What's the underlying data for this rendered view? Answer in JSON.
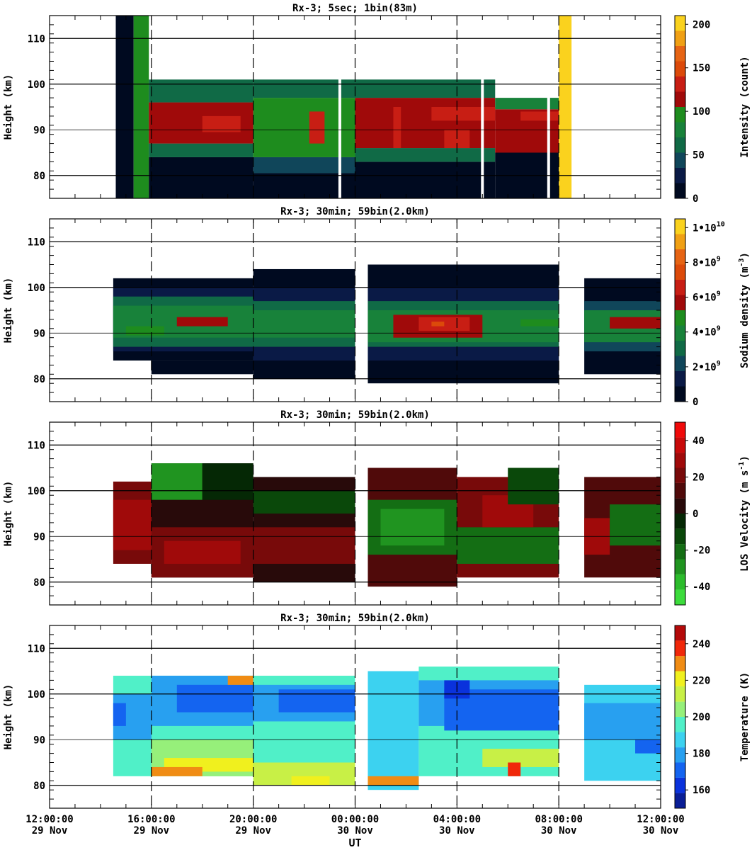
{
  "chart_data": [
    {
      "type": "heatmap",
      "title": "Rx-3;  5sec; 1bin(83m)",
      "ylabel": "Height (km)",
      "ylim": [
        75,
        115
      ],
      "yticks": [
        80,
        90,
        100,
        110
      ],
      "x_range_hours_since_12UT_29Nov": [
        0,
        24
      ],
      "cells": [
        [
          2.6,
          3.3,
          75.0,
          115.0,
          0
        ],
        [
          3.3,
          3.9,
          75.0,
          115.0,
          90
        ],
        [
          3.9,
          8.0,
          75.0,
          84.0,
          0
        ],
        [
          3.9,
          8.0,
          84.0,
          87.0,
          60
        ],
        [
          3.9,
          8.0,
          87.0,
          96.0,
          110
        ],
        [
          3.9,
          8.0,
          96.0,
          101.0,
          70
        ],
        [
          8.0,
          12.0,
          75.0,
          80.5,
          0
        ],
        [
          8.0,
          12.0,
          80.5,
          84.0,
          50
        ],
        [
          8.0,
          12.0,
          84.0,
          97.0,
          105
        ],
        [
          8.0,
          12.0,
          97.0,
          101.0,
          65
        ],
        [
          12.0,
          17.5,
          75.0,
          83.0,
          0
        ],
        [
          12.0,
          17.5,
          83.0,
          86.0,
          55
        ],
        [
          12.0,
          17.5,
          86.0,
          97.0,
          110
        ],
        [
          12.0,
          17.5,
          97.0,
          101.0,
          60
        ],
        [
          17.5,
          20.0,
          75.0,
          85.0,
          0
        ],
        [
          17.5,
          20.0,
          85.0,
          94.5,
          120
        ],
        [
          17.5,
          20.0,
          94.5,
          97.0,
          80
        ],
        [
          20.0,
          20.5,
          75.0,
          115.0,
          200
        ],
        [
          6.0,
          7.5,
          89.5,
          93.0,
          130
        ],
        [
          10.2,
          10.8,
          87.0,
          94.0,
          125
        ],
        [
          13.5,
          13.8,
          86.0,
          95.0,
          135
        ],
        [
          15.0,
          17.5,
          92.0,
          95.0,
          130
        ],
        [
          15.5,
          16.5,
          86.0,
          90.0,
          125
        ],
        [
          18.5,
          20.0,
          92.0,
          94.0,
          140
        ]
      ],
      "gaps_hours": [
        11.4,
        17.0,
        19.6
      ],
      "colorbar": {
        "label": "Intensity (count)",
        "min": 0,
        "max": 210,
        "tick_values": [
          0,
          50,
          100,
          150,
          200
        ],
        "tick_labels": [
          "0",
          "50",
          "100",
          "150",
          "200"
        ],
        "bands": [
          [
            0,
            17.5,
            "#000a20"
          ],
          [
            17.5,
            35,
            "#0a1a46"
          ],
          [
            35,
            52.5,
            "#10465a"
          ],
          [
            52.5,
            70,
            "#106a46"
          ],
          [
            70,
            87.5,
            "#18823a"
          ],
          [
            87.5,
            105,
            "#1e8c1e"
          ],
          [
            105,
            122.5,
            "#a00a0a"
          ],
          [
            122.5,
            140,
            "#c81e14"
          ],
          [
            140,
            157.5,
            "#dc4a0a"
          ],
          [
            157.5,
            175,
            "#e66414"
          ],
          [
            175,
            192.5,
            "#f0a014"
          ],
          [
            192.5,
            210,
            "#fad21e"
          ]
        ]
      }
    },
    {
      "type": "heatmap",
      "title": "Rx-3; 30min; 59bin(2.0km)",
      "ylabel": "Height (km)",
      "ylim": [
        75,
        115
      ],
      "yticks": [
        80,
        90,
        100,
        110
      ],
      "x_range_hours_since_12UT_29Nov": [
        0,
        24
      ],
      "cells": [
        [
          2.5,
          8.0,
          84.0,
          102.0,
          0.3
        ],
        [
          2.5,
          8.0,
          86.0,
          100.0,
          1.0
        ],
        [
          2.5,
          8.0,
          87.0,
          98.0,
          3.2
        ],
        [
          2.5,
          8.0,
          89.0,
          96.0,
          4.1
        ],
        [
          3.0,
          4.5,
          89.5,
          91.5,
          5.2
        ],
        [
          5.0,
          7.0,
          91.5,
          93.5,
          5.3
        ],
        [
          4.0,
          8.0,
          81.0,
          84.0,
          0.4
        ],
        [
          8.0,
          12.0,
          80.0,
          104.0,
          0.2
        ],
        [
          8.0,
          12.0,
          84.0,
          100.0,
          1.2
        ],
        [
          8.0,
          12.0,
          87.0,
          97.0,
          3.3
        ],
        [
          8.0,
          12.0,
          89.0,
          95.0,
          4.0
        ],
        [
          12.5,
          20.0,
          79.0,
          105.0,
          0.2
        ],
        [
          12.5,
          20.0,
          84.0,
          100.0,
          1.0
        ],
        [
          12.5,
          20.0,
          87.0,
          97.0,
          3.1
        ],
        [
          12.5,
          20.0,
          88.0,
          95.0,
          4.2
        ],
        [
          13.5,
          17.0,
          89.0,
          94.0,
          5.5
        ],
        [
          14.5,
          16.5,
          90.5,
          93.5,
          6.8
        ],
        [
          15.0,
          15.5,
          91.5,
          92.5,
          7.2
        ],
        [
          18.5,
          20.0,
          91.5,
          93.0,
          5.0
        ],
        [
          21.0,
          24.0,
          81.0,
          102.0,
          0.2
        ],
        [
          21.0,
          24.0,
          86.0,
          97.0,
          2.0
        ],
        [
          21.0,
          24.0,
          88.0,
          95.0,
          4.0
        ],
        [
          22.0,
          24.0,
          91.0,
          93.5,
          5.4
        ]
      ],
      "colorbar": {
        "label_parts": [
          "Sodium density (m",
          "-3",
          ")"
        ],
        "min": 0,
        "max": 10.5,
        "tick_values": [
          0,
          2,
          4,
          6,
          8,
          10
        ],
        "tick_labels": [
          {
            "base": "0",
            "exp": ""
          },
          {
            "base": "2•10",
            "exp": "9"
          },
          {
            "base": "4•10",
            "exp": "9"
          },
          {
            "base": "6•10",
            "exp": "9"
          },
          {
            "base": "8•10",
            "exp": "9"
          },
          {
            "base": "1•10",
            "exp": "10"
          }
        ],
        "bands": [
          [
            0,
            0.875,
            "#000a20"
          ],
          [
            0.875,
            1.75,
            "#0a1a46"
          ],
          [
            1.75,
            2.625,
            "#10465a"
          ],
          [
            2.625,
            3.5,
            "#106a46"
          ],
          [
            3.5,
            4.375,
            "#18823a"
          ],
          [
            4.375,
            5.25,
            "#1e8c1e"
          ],
          [
            5.25,
            6.125,
            "#a00a0a"
          ],
          [
            6.125,
            7.0,
            "#c81e14"
          ],
          [
            7.0,
            7.875,
            "#dc4a0a"
          ],
          [
            7.875,
            8.75,
            "#e66414"
          ],
          [
            8.75,
            9.625,
            "#f0a014"
          ],
          [
            9.625,
            10.5,
            "#fad21e"
          ]
        ]
      }
    },
    {
      "type": "heatmap",
      "title": "Rx-3; 30min; 59bin(2.0km)",
      "ylabel": "Height (km)",
      "ylim": [
        75,
        115
      ],
      "yticks": [
        80,
        90,
        100,
        110
      ],
      "x_range_hours_since_12UT_29Nov": [
        0,
        24
      ],
      "cells": [
        [
          2.5,
          4.0,
          84.0,
          102.0,
          20
        ],
        [
          2.5,
          4.0,
          87.0,
          98.0,
          30
        ],
        [
          4.0,
          8.0,
          81.0,
          106.0,
          5
        ],
        [
          4.0,
          6.0,
          98.0,
          106.0,
          -25
        ],
        [
          6.0,
          8.0,
          98.0,
          106.0,
          -5
        ],
        [
          4.0,
          8.0,
          81.0,
          92.0,
          22
        ],
        [
          4.5,
          7.5,
          84.0,
          89.0,
          30
        ],
        [
          8.0,
          12.0,
          80.0,
          103.0,
          8
        ],
        [
          8.0,
          12.0,
          84.0,
          92.0,
          18
        ],
        [
          8.0,
          12.0,
          95.0,
          100.0,
          -12
        ],
        [
          12.5,
          16.0,
          79.0,
          105.0,
          10
        ],
        [
          12.5,
          16.0,
          86.0,
          98.0,
          -18
        ],
        [
          13.0,
          15.5,
          88.0,
          96.0,
          -30
        ],
        [
          16.0,
          20.0,
          81.0,
          103.0,
          18
        ],
        [
          16.0,
          20.0,
          84.0,
          92.0,
          -22
        ],
        [
          17.0,
          19.0,
          92.0,
          99.0,
          28
        ],
        [
          18.0,
          20.0,
          97.0,
          105.0,
          -10
        ],
        [
          21.0,
          24.0,
          81.0,
          103.0,
          12
        ],
        [
          21.0,
          22.0,
          86.0,
          94.0,
          32
        ],
        [
          22.0,
          24.0,
          88.0,
          97.0,
          -18
        ]
      ],
      "colorbar": {
        "label_parts": [
          "LOS Velocity (m s",
          "-1",
          ")"
        ],
        "min": -50,
        "max": 50,
        "tick_values": [
          -40,
          -20,
          0,
          20,
          40
        ],
        "tick_labels": [
          "-40",
          "-20",
          "0",
          "20",
          "40"
        ],
        "bands": [
          [
            -50,
            -41.7,
            "#3cdc3c"
          ],
          [
            -41.7,
            -33.3,
            "#2cbc2c"
          ],
          [
            -33.3,
            -25,
            "#209420"
          ],
          [
            -25,
            -16.7,
            "#146e14"
          ],
          [
            -16.7,
            -8.3,
            "#0a480a"
          ],
          [
            -8.3,
            0,
            "#052805"
          ],
          [
            0,
            8.3,
            "#280a0a"
          ],
          [
            8.3,
            16.7,
            "#500a0a"
          ],
          [
            16.7,
            25,
            "#780a0a"
          ],
          [
            25,
            33.3,
            "#a00a0a"
          ],
          [
            33.3,
            41.7,
            "#c80a0a"
          ],
          [
            41.7,
            50,
            "#f00a0a"
          ]
        ]
      }
    },
    {
      "type": "heatmap",
      "title": "Rx-3; 30min; 59bin(2.0km)",
      "ylabel": "Height (km)",
      "xlabel": "UT",
      "ylim": [
        75,
        115
      ],
      "yticks": [
        80,
        90,
        100,
        110
      ],
      "x_range_hours_since_12UT_29Nov": [
        0,
        24
      ],
      "xtick_labels": [
        [
          "12:00:00",
          "29 Nov"
        ],
        [
          "16:00:00",
          "29 Nov"
        ],
        [
          "20:00:00",
          "29 Nov"
        ],
        [
          "00:00:00",
          "30 Nov"
        ],
        [
          "04:00:00",
          "30 Nov"
        ],
        [
          "08:00:00",
          "30 Nov"
        ],
        [
          "12:00:00",
          "30 Nov"
        ]
      ],
      "cells": [
        [
          2.5,
          8.0,
          82.0,
          104.0,
          195
        ],
        [
          2.5,
          4.0,
          90.0,
          100.0,
          180
        ],
        [
          2.5,
          3.0,
          93.0,
          98.0,
          172
        ],
        [
          4.0,
          8.0,
          93.0,
          104.0,
          180
        ],
        [
          5.0,
          8.0,
          96.0,
          102.0,
          172
        ],
        [
          4.0,
          8.0,
          82.0,
          90.0,
          205
        ],
        [
          4.5,
          8.0,
          83.0,
          86.0,
          218
        ],
        [
          4.0,
          6.0,
          82.0,
          84.0,
          232
        ],
        [
          7.0,
          8.0,
          102.0,
          104.0,
          232
        ],
        [
          8.0,
          12.0,
          80.0,
          104.0,
          195
        ],
        [
          8.0,
          12.0,
          94.0,
          102.0,
          180
        ],
        [
          9.0,
          12.0,
          96.0,
          101.0,
          172
        ],
        [
          8.0,
          12.0,
          80.0,
          85.0,
          215
        ],
        [
          9.5,
          11.0,
          80.0,
          82.0,
          225
        ],
        [
          12.5,
          14.5,
          79.0,
          105.0,
          190
        ],
        [
          12.5,
          14.5,
          80.0,
          82.0,
          232
        ],
        [
          14.5,
          20.0,
          82.0,
          106.0,
          192
        ],
        [
          14.5,
          20.0,
          93.0,
          103.0,
          180
        ],
        [
          15.5,
          20.0,
          92.0,
          101.0,
          172
        ],
        [
          15.5,
          16.5,
          99.0,
          103.0,
          165
        ],
        [
          17.0,
          20.0,
          84.0,
          88.0,
          212
        ],
        [
          18.0,
          18.5,
          82.0,
          85.0,
          238
        ],
        [
          21.0,
          24.0,
          81.0,
          102.0,
          190
        ],
        [
          21.0,
          24.0,
          90.0,
          98.0,
          180
        ],
        [
          23.0,
          24.0,
          87.0,
          90.0,
          172
        ]
      ],
      "colorbar": {
        "label": "Temperature (K)",
        "min": 150,
        "max": 250,
        "tick_values": [
          160,
          180,
          200,
          220,
          240
        ],
        "tick_labels": [
          "160",
          "180",
          "200",
          "220",
          "240"
        ],
        "bands": [
          [
            150,
            158.3,
            "#0a1e96"
          ],
          [
            158.3,
            166.7,
            "#0a32dc"
          ],
          [
            166.7,
            175,
            "#1464f0"
          ],
          [
            175,
            183.3,
            "#28a0f0"
          ],
          [
            183.3,
            191.7,
            "#3cd2f0"
          ],
          [
            191.7,
            200,
            "#50f0c8"
          ],
          [
            200,
            208.3,
            "#96f07a"
          ],
          [
            208.3,
            216.7,
            "#c8f046"
          ],
          [
            216.7,
            225,
            "#f0f01e"
          ],
          [
            225,
            233.3,
            "#f08c14"
          ],
          [
            233.3,
            241.7,
            "#f0280a"
          ],
          [
            241.7,
            250,
            "#b40a0a"
          ]
        ]
      }
    }
  ]
}
